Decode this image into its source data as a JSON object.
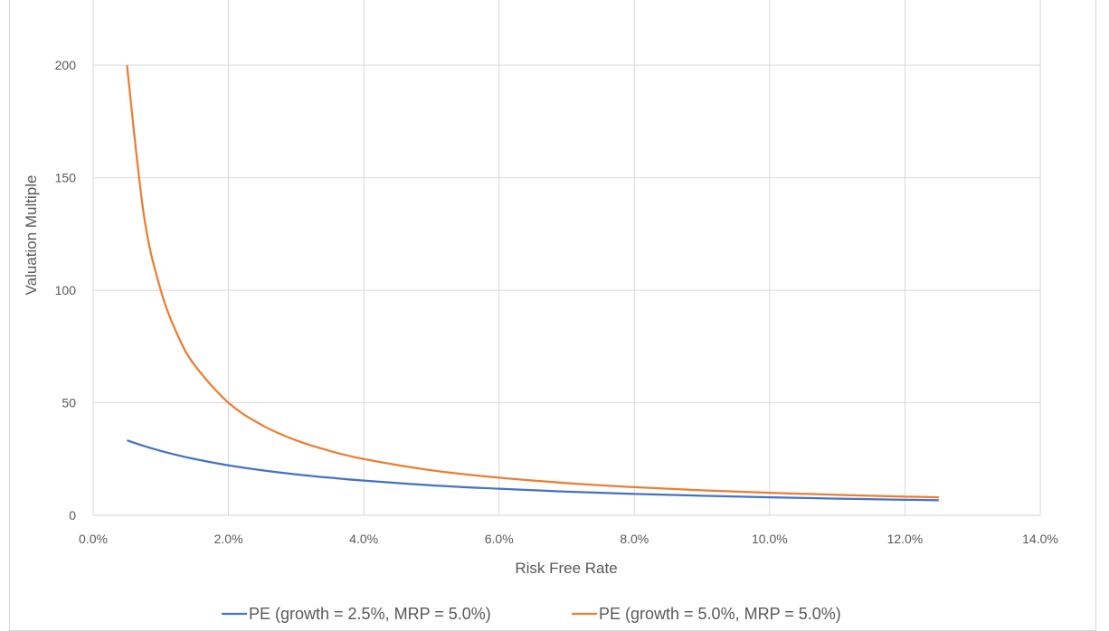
{
  "chart_data": {
    "type": "line",
    "title": "",
    "xlabel": "Risk Free Rate",
    "ylabel": "Valuation Multiple",
    "xlim": [
      0.0,
      14.0
    ],
    "ylim": [
      0,
      200
    ],
    "x_ticks": [
      "0.0%",
      "2.0%",
      "4.0%",
      "6.0%",
      "8.0%",
      "10.0%",
      "12.0%",
      "14.0%"
    ],
    "y_ticks": [
      "0",
      "50",
      "100",
      "150",
      "200"
    ],
    "grid": true,
    "legend_position": "bottom",
    "x": [
      0.5,
      0.75,
      1.0,
      1.25,
      1.5,
      2.0,
      2.5,
      3.0,
      3.5,
      4.0,
      5.0,
      6.0,
      7.0,
      8.0,
      9.0,
      10.0,
      11.0,
      12.0,
      12.5
    ],
    "series": [
      {
        "name": "PE (growth = 2.5%, MRP = 5.0%)",
        "color": "#4472c4",
        "values": [
          33.3,
          30.8,
          28.6,
          26.7,
          25.0,
          22.2,
          20.0,
          18.2,
          16.7,
          15.4,
          13.3,
          11.8,
          10.5,
          9.5,
          8.7,
          8.0,
          7.4,
          6.9,
          6.7
        ]
      },
      {
        "name": "PE (growth = 5.0%, MRP = 5.0%)",
        "color": "#ed7d31",
        "values": [
          200.0,
          133.3,
          100.0,
          80.0,
          66.7,
          50.0,
          40.0,
          33.3,
          28.6,
          25.0,
          20.0,
          16.7,
          14.3,
          12.5,
          11.1,
          10.0,
          9.1,
          8.3,
          8.0
        ]
      }
    ]
  }
}
